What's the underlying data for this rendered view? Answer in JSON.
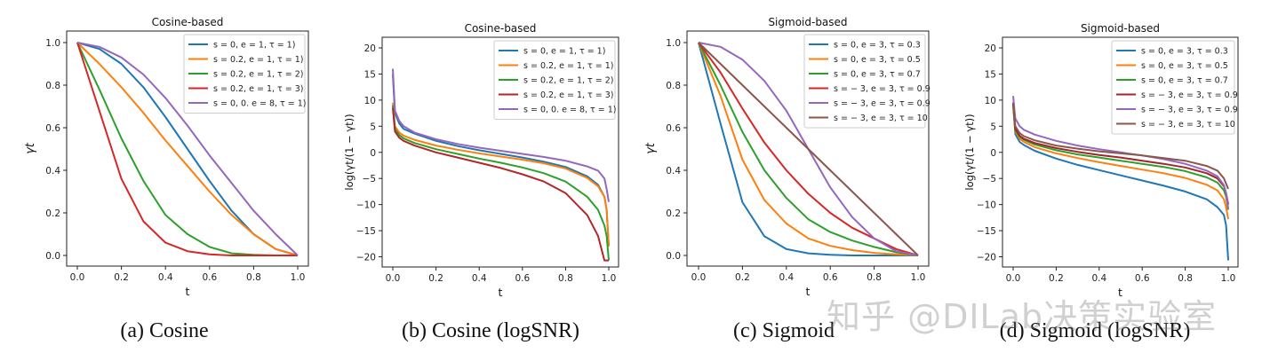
{
  "watermark": "知乎 @DILab决策实验室",
  "chart_data": [
    {
      "type": "line",
      "caption": "(a) Cosine",
      "title": "Cosine-based",
      "xlabel": "t",
      "ylabel": "γt",
      "xlim": [
        0,
        1
      ],
      "ylim": [
        -0.05,
        1.05
      ],
      "xticks": [
        "0.0",
        "0.2",
        "0.4",
        "0.6",
        "0.8",
        "1.0"
      ],
      "yticks": [
        "0.0",
        "0.2",
        "0.4",
        "0.6",
        "0.8",
        "1.0"
      ],
      "ytick_values": [
        0,
        0.2,
        0.4,
        0.6,
        0.8,
        1.0
      ],
      "legend": "top-right",
      "grid": false,
      "x": [
        0,
        0.1,
        0.2,
        0.3,
        0.4,
        0.5,
        0.6,
        0.7,
        0.8,
        0.9,
        1.0
      ],
      "series": [
        {
          "name": "s = 0, e = 1, τ = 1)",
          "color": "#1f77b4",
          "values": [
            1,
            0.97,
            0.9,
            0.79,
            0.65,
            0.5,
            0.35,
            0.21,
            0.1,
            0.03,
            0
          ]
        },
        {
          "name": "s = 0.2, e = 1, τ = 1)",
          "color": "#ff7f0e",
          "values": [
            1,
            0.9,
            0.79,
            0.67,
            0.54,
            0.42,
            0.3,
            0.19,
            0.1,
            0.03,
            0
          ]
        },
        {
          "name": "s = 0.2, e = 1, τ = 2)",
          "color": "#2ca02c",
          "values": [
            1,
            0.78,
            0.55,
            0.35,
            0.19,
            0.1,
            0.04,
            0.01,
            0.003,
            0,
            0
          ]
        },
        {
          "name": "s = 0.2, e = 1, τ = 3)",
          "color": "#d62728",
          "values": [
            1,
            0.68,
            0.36,
            0.16,
            0.06,
            0.02,
            0.005,
            0,
            0,
            0,
            0
          ]
        },
        {
          "name": "s = 0, 0. e = 8, τ = 1)",
          "color": "#9467bd",
          "values": [
            1,
            0.98,
            0.93,
            0.85,
            0.74,
            0.61,
            0.47,
            0.34,
            0.21,
            0.1,
            0
          ]
        }
      ]
    },
    {
      "type": "line",
      "caption": "(b) Cosine (logSNR)",
      "title": "Cosine-based",
      "xlabel": "t",
      "ylabel": "log(γt/(1 − γt))",
      "xlim": [
        0,
        1
      ],
      "ylim": [
        -22,
        22
      ],
      "xticks": [
        "0.0",
        "0.2",
        "0.4",
        "0.6",
        "0.8",
        "1.0"
      ],
      "yticks": [
        "−20",
        "−15",
        "−10",
        "−5",
        "0",
        "5",
        "10",
        "15",
        "20"
      ],
      "ytick_values": [
        -20,
        -15,
        -10,
        -5,
        0,
        5,
        10,
        15,
        20
      ],
      "legend": "top-right",
      "grid": false,
      "x": [
        0,
        0.01,
        0.03,
        0.05,
        0.1,
        0.2,
        0.3,
        0.4,
        0.5,
        0.6,
        0.7,
        0.8,
        0.9,
        0.95,
        0.98,
        0.99,
        1.0
      ],
      "series": [
        {
          "name": "s = 0, e = 1, τ = 1)",
          "color": "#1f77b4",
          "values": [
            15,
            7.5,
            5.5,
            4.5,
            3.6,
            2.2,
            1.2,
            0.4,
            -0.3,
            -1.0,
            -1.8,
            -2.8,
            -4.6,
            -6.2,
            -8.5,
            -11,
            -18
          ]
        },
        {
          "name": "s = 0.2, e = 1, τ = 1)",
          "color": "#ff7f0e",
          "values": [
            9.5,
            5,
            3.8,
            3.2,
            2.4,
            1.3,
            0.5,
            -0.2,
            -0.8,
            -1.4,
            -2.1,
            -3.1,
            -4.9,
            -6.5,
            -8.5,
            -11,
            -18
          ]
        },
        {
          "name": "s = 0.2, e = 1, τ = 2)",
          "color": "#2ca02c",
          "values": [
            9,
            4.5,
            3.3,
            2.7,
            1.8,
            0.6,
            -0.3,
            -1.2,
            -2,
            -2.9,
            -4,
            -5.6,
            -8.5,
            -11,
            -14,
            -16,
            -20.7
          ]
        },
        {
          "name": "s = 0.2, e = 1, τ = 3)",
          "color": "#b2262a",
          "values": [
            8.5,
            4,
            2.8,
            2.2,
            1.3,
            0,
            -1,
            -2,
            -3,
            -4.2,
            -5.6,
            -7.8,
            -12,
            -16,
            -20.7,
            -20.7,
            -20.7
          ]
        },
        {
          "name": "s = 0, 0. e = 8, τ = 1)",
          "color": "#9467bd",
          "values": [
            16,
            8,
            6,
            5,
            3.8,
            2.5,
            1.6,
            0.9,
            0.3,
            -0.3,
            -0.9,
            -1.6,
            -2.7,
            -3.5,
            -5,
            -7,
            -9.5
          ]
        }
      ]
    },
    {
      "type": "line",
      "caption": "(c) Sigmoid",
      "title": "Sigmoid-based",
      "xlabel": "t",
      "ylabel": "γt",
      "xlim": [
        0,
        1
      ],
      "ylim": [
        -0.05,
        1.05
      ],
      "xticks": [
        "0.0",
        "0.2",
        "0.4",
        "0.6",
        "0.8",
        "1.0"
      ],
      "yticks": [
        "0.0",
        "0.2",
        "0.4",
        "0.6",
        "0.8",
        "1.0"
      ],
      "ytick_values": [
        0,
        0.2,
        0.4,
        0.6,
        0.8,
        1.0
      ],
      "legend": "top-right",
      "grid": false,
      "x": [
        0,
        0.1,
        0.2,
        0.3,
        0.4,
        0.5,
        0.6,
        0.7,
        0.8,
        0.9,
        1.0
      ],
      "series": [
        {
          "name": "s = 0, e = 3, τ = 0.3",
          "color": "#1f77b4",
          "values": [
            1,
            0.62,
            0.25,
            0.09,
            0.03,
            0.01,
            0.003,
            0,
            0,
            0,
            0
          ]
        },
        {
          "name": "s = 0, e = 3, τ = 0.5",
          "color": "#ff7f0e",
          "values": [
            1,
            0.75,
            0.45,
            0.26,
            0.15,
            0.08,
            0.045,
            0.025,
            0.012,
            0.005,
            0
          ]
        },
        {
          "name": "s = 0, e = 3, τ = 0.7",
          "color": "#2ca02c",
          "values": [
            1,
            0.8,
            0.58,
            0.4,
            0.27,
            0.17,
            0.11,
            0.07,
            0.04,
            0.015,
            0
          ]
        },
        {
          "name": "s = − 3, e = 3, τ = 0.9",
          "color": "#d62728",
          "values": [
            1,
            0.86,
            0.69,
            0.53,
            0.4,
            0.29,
            0.2,
            0.13,
            0.08,
            0.03,
            0
          ]
        },
        {
          "name": "s = − 3, e = 3, τ = 0.9",
          "color": "#9467bd",
          "values": [
            1,
            0.98,
            0.92,
            0.82,
            0.68,
            0.5,
            0.32,
            0.18,
            0.08,
            0.02,
            0
          ]
        },
        {
          "name": "s = − 3, e = 3, τ = 10",
          "color": "#8c564b",
          "values": [
            1,
            0.9,
            0.8,
            0.7,
            0.6,
            0.5,
            0.4,
            0.3,
            0.2,
            0.1,
            0
          ]
        }
      ]
    },
    {
      "type": "line",
      "caption": "(d) Sigmoid (logSNR)",
      "title": "Sigmoid-based",
      "xlabel": "t",
      "ylabel": "log(γt/(1 − γt))",
      "xlim": [
        0,
        1
      ],
      "ylim": [
        -22,
        22
      ],
      "xticks": [
        "0.0",
        "0.2",
        "0.4",
        "0.6",
        "0.8",
        "1.0"
      ],
      "yticks": [
        "−20",
        "−15",
        "−10",
        "−5",
        "0",
        "5",
        "10",
        "15",
        "20"
      ],
      "ytick_values": [
        -20,
        -15,
        -10,
        -5,
        0,
        5,
        10,
        15,
        20
      ],
      "legend": "top-right",
      "grid": false,
      "x": [
        0,
        0.01,
        0.03,
        0.05,
        0.1,
        0.2,
        0.3,
        0.4,
        0.5,
        0.6,
        0.7,
        0.8,
        0.9,
        0.95,
        0.98,
        0.99,
        1.0
      ],
      "series": [
        {
          "name": "s = 0, e = 3, τ = 0.3",
          "color": "#1f77b4",
          "values": [
            9.5,
            3.5,
            2,
            1.4,
            0.3,
            -1.2,
            -2.4,
            -3.4,
            -4.4,
            -5.4,
            -6.4,
            -7.5,
            -9,
            -10.5,
            -12,
            -14,
            -20.7
          ]
        },
        {
          "name": "s = 0, e = 3, τ = 0.5",
          "color": "#ff7f0e",
          "values": [
            9,
            4,
            2.6,
            2,
            1,
            -0.2,
            -1.1,
            -1.9,
            -2.6,
            -3.3,
            -4,
            -4.9,
            -6.2,
            -7.3,
            -9,
            -10.5,
            -12.8
          ]
        },
        {
          "name": "s = 0, e = 3, τ = 0.7",
          "color": "#2ca02c",
          "values": [
            9,
            4.2,
            3,
            2.4,
            1.5,
            0.4,
            -0.4,
            -1,
            -1.6,
            -2.2,
            -2.8,
            -3.6,
            -4.8,
            -5.8,
            -7.3,
            -8.5,
            -11
          ]
        },
        {
          "name": "s = − 3, e = 3, τ = 0.9",
          "color": "#a3242c",
          "values": [
            9.5,
            4.5,
            3.2,
            2.6,
            1.8,
            0.8,
            0.1,
            -0.5,
            -1,
            -1.6,
            -2.2,
            -2.9,
            -4,
            -5,
            -6.5,
            -7.8,
            -10
          ]
        },
        {
          "name": "s = − 3, e = 3, τ = 0.9",
          "color": "#9467bd",
          "values": [
            10.8,
            6.5,
            5,
            4.3,
            3.4,
            2.2,
            1.3,
            0.6,
            0,
            -0.6,
            -1.3,
            -2.2,
            -3.5,
            -4.6,
            -6.3,
            -7.8,
            -10.8
          ]
        },
        {
          "name": "s = − 3, e = 3, τ = 10",
          "color": "#8c564b",
          "values": [
            9.5,
            5,
            3.7,
            3.1,
            2.3,
            1.3,
            0.7,
            0.2,
            -0.2,
            -0.6,
            -1.1,
            -1.6,
            -2.6,
            -3.5,
            -5,
            -6,
            -7
          ]
        }
      ]
    }
  ]
}
